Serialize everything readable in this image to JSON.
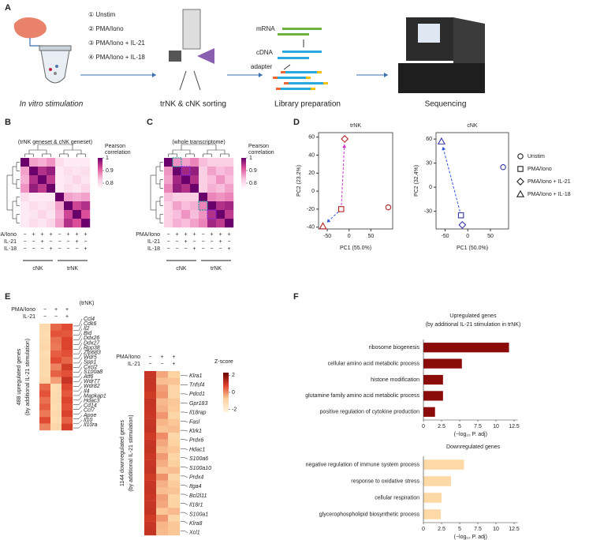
{
  "panel_labels": [
    "A",
    "B",
    "C",
    "D",
    "E",
    "F"
  ],
  "workflow": {
    "conditions": [
      "① Unstim",
      "② PMA/Iono",
      "③ PMA/Iono + IL-21",
      "④ PMA/Iono + IL-18"
    ],
    "steps": [
      "In vitro stimulation",
      "trNK & cNK sorting",
      "Library preparation",
      "Sequencing"
    ],
    "library_labels": [
      "mRNA",
      "cDNA",
      "adapter"
    ]
  },
  "chart_data": [
    {
      "type": "heatmap",
      "title": "(trNK geneset & cNK geneset)",
      "colorbar_title": "Pearson correlation",
      "colorbar_ticks": [
        0.8,
        0.9,
        1
      ],
      "zlim": [
        0.75,
        1
      ],
      "colors": [
        "#ffffff",
        "#f9c6df",
        "#e0529c",
        "#6a006a"
      ],
      "values": [
        [
          1,
          0.86,
          0.85,
          0.87,
          0.8,
          0.78,
          0.78,
          0.78
        ],
        [
          0.86,
          1,
          0.95,
          0.97,
          0.78,
          0.8,
          0.79,
          0.8
        ],
        [
          0.85,
          0.95,
          1,
          0.94,
          0.78,
          0.79,
          0.81,
          0.79
        ],
        [
          0.87,
          0.97,
          0.94,
          1,
          0.78,
          0.8,
          0.79,
          0.81
        ],
        [
          0.8,
          0.78,
          0.78,
          0.78,
          1,
          0.86,
          0.85,
          0.86
        ],
        [
          0.78,
          0.8,
          0.79,
          0.8,
          0.86,
          1,
          0.93,
          0.95
        ],
        [
          0.78,
          0.79,
          0.81,
          0.79,
          0.85,
          0.93,
          1,
          0.92
        ],
        [
          0.78,
          0.8,
          0.79,
          0.81,
          0.86,
          0.95,
          0.92,
          1
        ]
      ],
      "annotation_rows": [
        {
          "name": "PMA/Iono",
          "signs": [
            "−",
            "+",
            "+",
            "+",
            "−",
            "+",
            "+",
            "+"
          ]
        },
        {
          "name": "IL-21",
          "signs": [
            "−",
            "−",
            "+",
            "−",
            "−",
            "−",
            "+",
            "−"
          ]
        },
        {
          "name": "IL-18",
          "signs": [
            "−",
            "−",
            "−",
            "+",
            "−",
            "−",
            "−",
            "+"
          ]
        }
      ],
      "groups": [
        "cNK",
        "trNK"
      ],
      "group_colors": [
        "#2e3192",
        "#b22222"
      ]
    },
    {
      "type": "heatmap",
      "title": "(whole transcriptome)",
      "colorbar_title": "Pearson correlation",
      "colorbar_ticks": [
        0.8,
        0.9,
        1
      ],
      "zlim": [
        0.75,
        1
      ],
      "colors": [
        "#ffffff",
        "#f9c6df",
        "#e0529c",
        "#6a006a"
      ],
      "values": [
        [
          1,
          0.87,
          0.86,
          0.88,
          0.84,
          0.82,
          0.82,
          0.82
        ],
        [
          0.87,
          1,
          0.96,
          0.97,
          0.82,
          0.86,
          0.84,
          0.85
        ],
        [
          0.86,
          0.96,
          1,
          0.95,
          0.82,
          0.84,
          0.87,
          0.84
        ],
        [
          0.88,
          0.97,
          0.95,
          1,
          0.82,
          0.85,
          0.84,
          0.86
        ],
        [
          0.84,
          0.82,
          0.82,
          0.82,
          1,
          0.88,
          0.87,
          0.88
        ],
        [
          0.82,
          0.86,
          0.84,
          0.85,
          0.88,
          1,
          0.95,
          0.96
        ],
        [
          0.82,
          0.84,
          0.87,
          0.84,
          0.87,
          0.95,
          1,
          0.94
        ],
        [
          0.82,
          0.85,
          0.84,
          0.86,
          0.88,
          0.96,
          0.94,
          1
        ]
      ],
      "annotation_rows": [
        {
          "name": "PMA/Iono",
          "signs": [
            "−",
            "+",
            "+",
            "+",
            "−",
            "+",
            "+",
            "+"
          ]
        },
        {
          "name": "IL-21",
          "signs": [
            "−",
            "−",
            "+",
            "−",
            "−",
            "−",
            "+",
            "−"
          ]
        },
        {
          "name": "IL-18",
          "signs": [
            "−",
            "−",
            "−",
            "+",
            "−",
            "−",
            "−",
            "+"
          ]
        }
      ],
      "groups": [
        "cNK",
        "trNK"
      ],
      "group_colors": [
        "#2e3192",
        "#b22222"
      ]
    },
    {
      "type": "scatter",
      "title": "trNK",
      "color": "#b22222",
      "xlabel": "PC1 (55.0%)",
      "ylabel": "PC2 (23.2%)",
      "xlim": [
        -70,
        100
      ],
      "ylim": [
        -42,
        65
      ],
      "xticks": [
        -50,
        0,
        50
      ],
      "yticks": [
        -40,
        -20,
        0,
        20,
        40,
        60
      ],
      "series": [
        {
          "marker": "circle",
          "x": [
            90
          ],
          "y": [
            -18
          ]
        },
        {
          "marker": "square",
          "x": [
            -18
          ],
          "y": [
            -20
          ]
        },
        {
          "marker": "diamond",
          "x": [
            -10
          ],
          "y": [
            58
          ]
        },
        {
          "marker": "triangle",
          "x": [
            -60
          ],
          "y": [
            -39
          ]
        }
      ]
    },
    {
      "type": "scatter",
      "title": "cNK",
      "color": "#3535a8",
      "xlabel": "PC1 (50.0%)",
      "ylabel": "PC2 (32.4%)",
      "xlim": [
        -70,
        90
      ],
      "ylim": [
        -52,
        68
      ],
      "xticks": [
        -50,
        0,
        50
      ],
      "yticks": [
        -30,
        0,
        30,
        60
      ],
      "legend": true,
      "series": [
        {
          "name": "Unstim",
          "marker": "circle",
          "x": [
            78
          ],
          "y": [
            25
          ]
        },
        {
          "name": "PMA/Iono",
          "marker": "square",
          "x": [
            -15
          ],
          "y": [
            -35
          ]
        },
        {
          "name": "PMA/Iono + IL-21",
          "marker": "diamond",
          "x": [
            -12
          ],
          "y": [
            -47
          ]
        },
        {
          "name": "PMA/Iono + IL-18",
          "marker": "triangle",
          "x": [
            -58
          ],
          "y": [
            57
          ]
        }
      ]
    },
    {
      "type": "heatmap",
      "title": "(trNK)",
      "ylabel": "488 upregulated genes",
      "ysublabel": "(by additional IL-21 stimulation)",
      "zlim": [
        -2.3,
        2.3
      ],
      "colors": [
        "#fff4e2",
        "#fdd2a0",
        "#e0452e",
        "#6b0000"
      ],
      "annotation_rows": [
        {
          "name": "PMA/Iono",
          "signs": [
            "−",
            "+",
            "+"
          ]
        },
        {
          "name": "IL-21",
          "signs": [
            "−",
            "−",
            "+"
          ]
        }
      ],
      "values": [
        [
          -1.1,
          0.4,
          0.7
        ],
        [
          -1.15,
          0.6,
          0.55
        ],
        [
          -1.1,
          0.3,
          0.8
        ],
        [
          -1.0,
          0.2,
          0.8
        ],
        [
          -1.15,
          0.5,
          0.65
        ],
        [
          -1.1,
          0.7,
          0.4
        ],
        [
          -1.05,
          0.1,
          0.95
        ],
        [
          -1.1,
          0.45,
          0.65
        ],
        [
          -0.9,
          -0.2,
          1.1
        ],
        [
          0.4,
          -1.15,
          0.75
        ],
        [
          0.6,
          -1.15,
          0.55
        ],
        [
          0.3,
          -1.1,
          0.8
        ],
        [
          0.5,
          -1.15,
          0.65
        ],
        [
          0.2,
          -1.05,
          0.85
        ],
        [
          0.7,
          -1.15,
          0.45
        ],
        [
          0.1,
          -1.0,
          0.9
        ]
      ],
      "genes": [
        "Ccl4",
        "Cdk6",
        "Il2",
        "Bid",
        "Ddx26",
        "Ddx27",
        "Rpp38",
        "Zfp683",
        "Wdr5",
        "Spp1",
        "Cxcl2",
        "S100a8",
        "Atf6",
        "Wdr77",
        "Wdr82",
        "Il4",
        "Mapkap1",
        "Hdac3",
        "Cd14",
        "Ccl7",
        "Apoe",
        "Il10",
        "Il10ra"
      ]
    },
    {
      "type": "heatmap",
      "ylabel": "1144 downregulated genes",
      "ysublabel": "(by additional IL-21 stimulation)",
      "zlim": [
        -2.3,
        2.3
      ],
      "colors": [
        "#fff4e2",
        "#fdd2a0",
        "#e0452e",
        "#6b0000"
      ],
      "colorbar_title": "Z-score",
      "colorbar_ticks": [
        2,
        0,
        -2
      ],
      "annotation_rows": [
        {
          "name": "PMA/Iono",
          "signs": [
            "−",
            "+",
            "+"
          ]
        },
        {
          "name": "IL-21",
          "signs": [
            "−",
            "−",
            "+"
          ]
        }
      ],
      "values": [
        [
          1.1,
          -0.3,
          -0.8
        ],
        [
          1.15,
          -0.55,
          -0.6
        ],
        [
          1.1,
          -0.2,
          -0.9
        ],
        [
          1.0,
          -0.1,
          -0.9
        ],
        [
          1.15,
          -0.5,
          -0.65
        ],
        [
          1.1,
          -0.4,
          -0.7
        ],
        [
          1.05,
          -0.1,
          -0.95
        ],
        [
          1.1,
          -0.45,
          -0.65
        ],
        [
          1.15,
          -0.6,
          -0.55
        ],
        [
          1.0,
          0.0,
          -1.0
        ],
        [
          1.1,
          -0.3,
          -0.8
        ],
        [
          1.15,
          -0.5,
          -0.65
        ],
        [
          1.05,
          -0.15,
          -0.9
        ],
        [
          1.1,
          -0.35,
          -0.75
        ],
        [
          1.15,
          -0.6,
          -0.55
        ],
        [
          1.0,
          -0.05,
          -0.95
        ],
        [
          1.1,
          -0.4,
          -0.7
        ],
        [
          1.15,
          -0.55,
          -0.6
        ],
        [
          1.05,
          -0.2,
          -0.85
        ],
        [
          1.1,
          -0.3,
          -0.8
        ],
        [
          1.15,
          -0.65,
          -0.5
        ],
        [
          1.0,
          -0.1,
          -0.9
        ],
        [
          1.1,
          -0.45,
          -0.65
        ],
        [
          1.15,
          -0.5,
          -0.65
        ]
      ],
      "genes": [
        "Klra1",
        "Tnfsf4",
        "Pdcd1",
        "Gpr183",
        "Il18rap",
        "Fasl",
        "Klrk1",
        "Prdx6",
        "Hdac1",
        "S100a6",
        "S100a10",
        "Prdx4",
        "Itga4",
        "Bcl2l11",
        "Il18r1",
        "S100a1",
        "Klra8",
        "Xcl1"
      ]
    },
    {
      "type": "bar",
      "title": "Upregulated genes",
      "subtitle": "(by additional IL-21 stimulation in trNK)",
      "color": "#8b0a0a",
      "categories": [
        "ribosome biogenesis",
        "cellular amino acid metabolic process",
        "histone modification",
        "glutamine family amino acid metabolic process",
        "positive regulation of cytokine production"
      ],
      "values": [
        11.8,
        5.3,
        2.7,
        2.7,
        1.6
      ],
      "xlim": [
        0,
        13
      ],
      "xticks": [
        0,
        2.5,
        5,
        7.5,
        10,
        12.5
      ],
      "xlabel": "(−log₁₀ P. adj)"
    },
    {
      "type": "bar",
      "title": "Downregulated genes",
      "color": "#fdd9a8",
      "categories": [
        "negative regulation of immune system process",
        "response to oxidative stress",
        "cellular respiration",
        "glycerophospholipid biosynthetic process"
      ],
      "values": [
        5.6,
        3.8,
        2.5,
        2.4
      ],
      "xlim": [
        0,
        13
      ],
      "xticks": [
        0,
        2.5,
        5,
        7.5,
        10,
        12.5
      ],
      "xlabel": "(−log₁₀ P. adj)"
    }
  ]
}
